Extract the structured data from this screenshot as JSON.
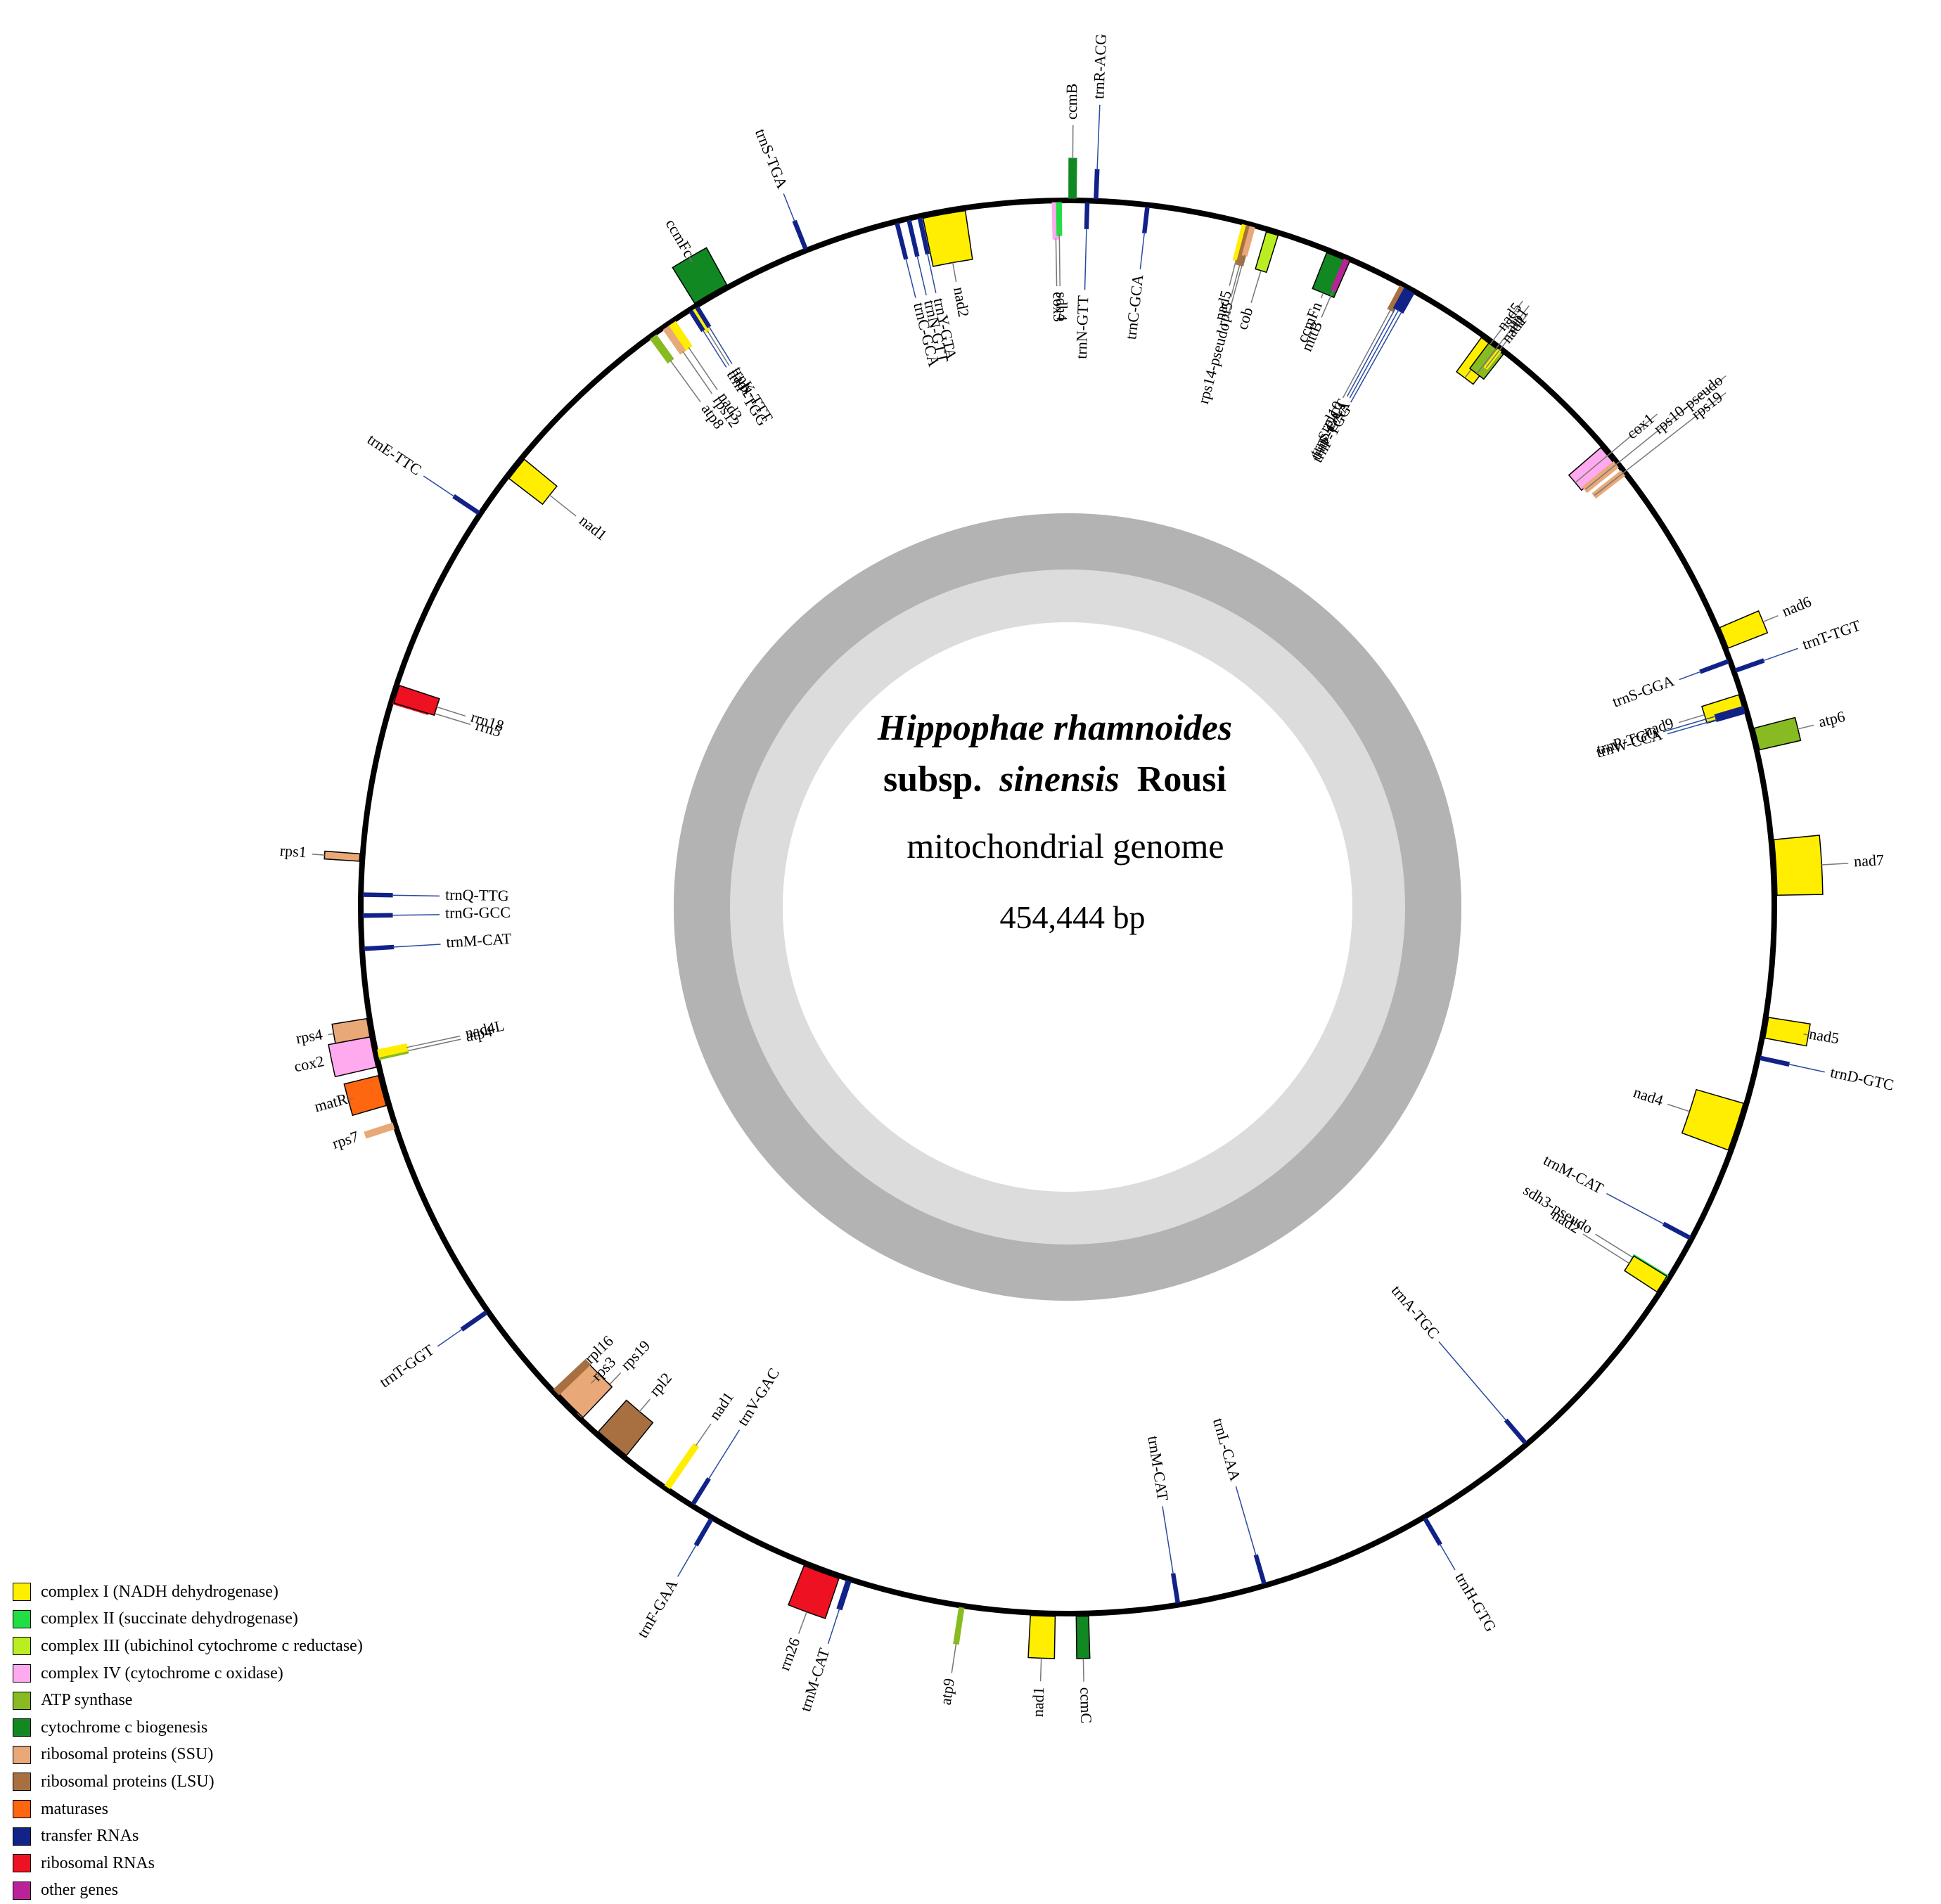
{
  "title": {
    "species": "Hippophae rhamnoides",
    "subsp_prefix": "subsp.",
    "subsp_name": "sinensis",
    "authority": "Rousi",
    "genome_type": "mitochondrial genome",
    "size": "454,444 bp"
  },
  "legend": [
    {
      "label": "complex I (NADH dehydrogenase)",
      "color": "#ffee00"
    },
    {
      "label": "complex II (succinate dehydrogenase)",
      "color": "#22dd44"
    },
    {
      "label": "complex III (ubichinol cytochrome c reductase)",
      "color": "#bbee22"
    },
    {
      "label": "complex IV (cytochrome c oxidase)",
      "color": "#ffaaee"
    },
    {
      "label": "ATP synthase",
      "color": "#88bb22"
    },
    {
      "label": "cytochrome c biogenesis",
      "color": "#118822"
    },
    {
      "label": "ribosomal proteins (SSU)",
      "color": "#e8a878"
    },
    {
      "label": "ribosomal proteins (LSU)",
      "color": "#a87040"
    },
    {
      "label": "maturases",
      "color": "#ff6610"
    },
    {
      "label": "transfer RNAs",
      "color": "#112288"
    },
    {
      "label": "ribosomal RNAs",
      "color": "#ee1122"
    },
    {
      "label": "other genes",
      "color": "#bb2299"
    }
  ],
  "chart_data": {
    "type": "circular-genome-map",
    "genome_length_bp": 454444,
    "inner_ring": "GC content",
    "genes": [
      {
        "name": "ccmB",
        "category": "cytochrome c biogenesis",
        "strand": "outer"
      },
      {
        "name": "trnR-ACG",
        "category": "transfer RNAs",
        "strand": "outer"
      },
      {
        "name": "trnN-GTT",
        "category": "transfer RNAs",
        "strand": "inner"
      },
      {
        "name": "trnC-GCA",
        "category": "transfer RNAs",
        "strand": "inner"
      },
      {
        "name": "nad5",
        "category": "complex I (NADH dehydrogenase)",
        "strand": "inner"
      },
      {
        "name": "rpl5",
        "category": "ribosomal proteins (LSU)",
        "strand": "inner"
      },
      {
        "name": "rps14-pseudo",
        "category": "ribosomal proteins (SSU)",
        "strand": "inner"
      },
      {
        "name": "cob",
        "category": "complex III (ubichinol cytochrome c reductase)",
        "strand": "inner"
      },
      {
        "name": "ccmFn",
        "category": "cytochrome c biogenesis",
        "strand": "inner"
      },
      {
        "name": "mttB",
        "category": "other genes",
        "strand": "inner"
      },
      {
        "name": "rpl10",
        "category": "ribosomal proteins (LSU)",
        "strand": "inner"
      },
      {
        "name": "trnS-GCT",
        "category": "transfer RNAs",
        "strand": "inner"
      },
      {
        "name": "trnF-GAA",
        "category": "transfer RNAs",
        "strand": "inner"
      },
      {
        "name": "trnP-TGG",
        "category": "transfer RNAs",
        "strand": "inner"
      },
      {
        "name": "nad5",
        "category": "complex I (NADH dehydrogenase)",
        "strand": "inner"
      },
      {
        "name": "atp1",
        "category": "ATP synthase",
        "strand": "inner"
      },
      {
        "name": "nad1",
        "category": "complex I (NADH dehydrogenase)",
        "strand": "inner"
      },
      {
        "name": "cox1",
        "category": "complex IV (cytochrome c oxidase)",
        "strand": "inner"
      },
      {
        "name": "rps10-pseudo",
        "category": "ribosomal proteins (SSU)",
        "strand": "inner"
      },
      {
        "name": "rps19",
        "category": "ribosomal proteins (SSU)",
        "strand": "inner"
      },
      {
        "name": "nad6",
        "category": "complex I (NADH dehydrogenase)",
        "strand": "outer"
      },
      {
        "name": "trnS-GGA",
        "category": "transfer RNAs",
        "strand": "inner"
      },
      {
        "name": "trnT-TGT",
        "category": "transfer RNAs",
        "strand": "outer"
      },
      {
        "name": "nad9",
        "category": "complex I (NADH dehydrogenase)",
        "strand": "inner"
      },
      {
        "name": "trnP-TGG",
        "category": "transfer RNAs",
        "strand": "inner"
      },
      {
        "name": "trnW-CCA",
        "category": "transfer RNAs",
        "strand": "inner"
      },
      {
        "name": "atp6",
        "category": "ATP synthase",
        "strand": "outer"
      },
      {
        "name": "nad7",
        "category": "complex I (NADH dehydrogenase)",
        "strand": "outer"
      },
      {
        "name": "nad5",
        "category": "complex I (NADH dehydrogenase)",
        "strand": "outer"
      },
      {
        "name": "trnD-GTC",
        "category": "transfer RNAs",
        "strand": "outer"
      },
      {
        "name": "nad4",
        "category": "complex I (NADH dehydrogenase)",
        "strand": "inner"
      },
      {
        "name": "trnM-CAT",
        "category": "transfer RNAs",
        "strand": "inner"
      },
      {
        "name": "sdh3-pseudo",
        "category": "complex II (succinate dehydrogenase)",
        "strand": "inner"
      },
      {
        "name": "nad2",
        "category": "complex I (NADH dehydrogenase)",
        "strand": "inner"
      },
      {
        "name": "trnA-TGC",
        "category": "transfer RNAs",
        "strand": "inner"
      },
      {
        "name": "trnH-GTG",
        "category": "transfer RNAs",
        "strand": "outer"
      },
      {
        "name": "trnL-CAA",
        "category": "transfer RNAs",
        "strand": "inner"
      },
      {
        "name": "trnM-CAT",
        "category": "transfer RNAs",
        "strand": "inner"
      },
      {
        "name": "ccmC",
        "category": "cytochrome c biogenesis",
        "strand": "outer"
      },
      {
        "name": "nad1",
        "category": "complex I (NADH dehydrogenase)",
        "strand": "outer"
      },
      {
        "name": "atp9",
        "category": "ATP synthase",
        "strand": "outer"
      },
      {
        "name": "trnM-CAT",
        "category": "transfer RNAs",
        "strand": "outer"
      },
      {
        "name": "rrn26",
        "category": "ribosomal RNAs",
        "strand": "outer"
      },
      {
        "name": "nad1",
        "category": "complex I (NADH dehydrogenase)",
        "strand": "inner"
      },
      {
        "name": "trnV-GAC",
        "category": "transfer RNAs",
        "strand": "inner"
      },
      {
        "name": "trnF-GAA",
        "category": "transfer RNAs",
        "strand": "outer"
      },
      {
        "name": "rpl2",
        "category": "ribosomal proteins (LSU)",
        "strand": "inner"
      },
      {
        "name": "rps19",
        "category": "ribosomal proteins (SSU)",
        "strand": "inner"
      },
      {
        "name": "rps3",
        "category": "ribosomal proteins (SSU)",
        "strand": "inner"
      },
      {
        "name": "rpl16",
        "category": "ribosomal proteins (LSU)",
        "strand": "inner"
      },
      {
        "name": "trnT-GGT",
        "category": "transfer RNAs",
        "strand": "outer"
      },
      {
        "name": "atp4",
        "category": "ATP synthase",
        "strand": "inner"
      },
      {
        "name": "nad4L",
        "category": "complex I (NADH dehydrogenase)",
        "strand": "inner"
      },
      {
        "name": "matR",
        "category": "maturases",
        "strand": "outer"
      },
      {
        "name": "rps7",
        "category": "ribosomal proteins (SSU)",
        "strand": "outer"
      },
      {
        "name": "cox2",
        "category": "complex IV (cytochrome c oxidase)",
        "strand": "outer"
      },
      {
        "name": "rps4",
        "category": "ribosomal proteins (SSU)",
        "strand": "outer"
      },
      {
        "name": "trnM-CAT",
        "category": "transfer RNAs",
        "strand": "inner"
      },
      {
        "name": "trnG-GCC",
        "category": "transfer RNAs",
        "strand": "inner"
      },
      {
        "name": "trnQ-TTG",
        "category": "transfer RNAs",
        "strand": "inner"
      },
      {
        "name": "rps1",
        "category": "ribosomal proteins (SSU)",
        "strand": "outer"
      },
      {
        "name": "rrn5",
        "category": "ribosomal RNAs",
        "strand": "inner"
      },
      {
        "name": "rrn18",
        "category": "ribosomal RNAs",
        "strand": "inner"
      },
      {
        "name": "nad1",
        "category": "complex I (NADH dehydrogenase)",
        "strand": "inner"
      },
      {
        "name": "trnE-TTC",
        "category": "transfer RNAs",
        "strand": "outer"
      },
      {
        "name": "nad1",
        "category": "complex I (NADH dehydrogenase)",
        "strand": "inner"
      },
      {
        "name": "ccmFc",
        "category": "cytochrome c biogenesis",
        "strand": "outer"
      },
      {
        "name": "atp8",
        "category": "ATP synthase",
        "strand": "inner"
      },
      {
        "name": "rps12",
        "category": "ribosomal proteins (SSU)",
        "strand": "inner"
      },
      {
        "name": "nad3",
        "category": "complex I (NADH dehydrogenase)",
        "strand": "inner"
      },
      {
        "name": "trnP-TGG",
        "category": "transfer RNAs",
        "strand": "inner"
      },
      {
        "name": "trnK-TTT",
        "category": "transfer RNAs",
        "strand": "inner"
      },
      {
        "name": "trnS-TGA",
        "category": "transfer RNAs",
        "strand": "outer"
      },
      {
        "name": "trnC-GCA",
        "category": "transfer RNAs",
        "strand": "inner"
      },
      {
        "name": "trnN-GTT",
        "category": "transfer RNAs",
        "strand": "inner"
      },
      {
        "name": "trnY-GTA",
        "category": "transfer RNAs",
        "strand": "inner"
      },
      {
        "name": "nad2",
        "category": "complex I (NADH dehydrogenase)",
        "strand": "inner"
      },
      {
        "name": "cox3",
        "category": "complex IV (cytochrome c oxidase)",
        "strand": "inner"
      },
      {
        "name": "sdh4",
        "category": "complex II (succinate dehydrogenase)",
        "strand": "inner"
      }
    ]
  }
}
